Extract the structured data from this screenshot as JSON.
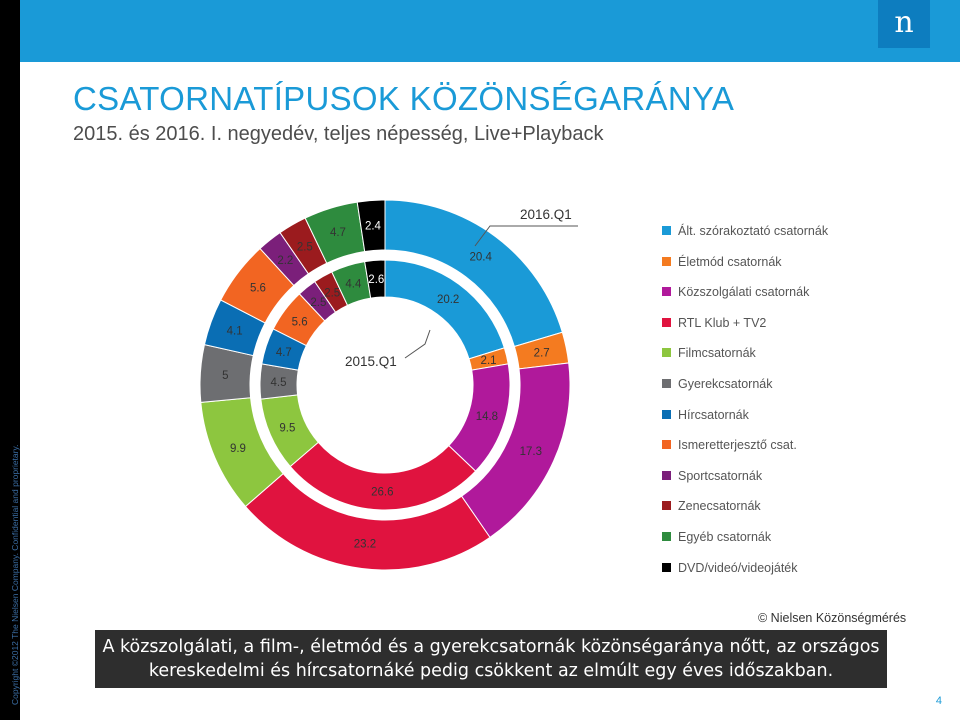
{
  "header": {
    "logo_letter": "n"
  },
  "title": "CSATORNATÍPUSOK KÖZÖNSÉGARÁNYA",
  "subtitle": "2015. és 2016. I. negyedév, teljes népesség, Live+Playback",
  "copyright": "Copyright ©2012 The Nielsen Company. Confidential and proprietary.",
  "source": "© Nielsen Közönségmérés",
  "footer_text": "A közszolgálati, a film-, életmód és a gyerekcsatornák közönségaránya nőtt, az országos kereskedelmi és hírcsatornáké pedig csökkent az elmúlt egy éves időszakban.",
  "page_number": "4",
  "chart_data": {
    "type": "donut",
    "categories": [
      "Ált. szórakoztató csatornák",
      "Életmód csatornák",
      "Közszolgálati csatornák",
      "RTL Klub + TV2",
      "Filmcsatornák",
      "Gyerekcsatornák",
      "Hírcsatornák",
      "Ismeretterjesztő csat.",
      "Sportcsatornák",
      "Zenecsatornák",
      "Egyéb csatornák",
      "DVD/videó/videojáték"
    ],
    "colors": [
      "#1a9ad7",
      "#f47b20",
      "#b0199b",
      "#e0133f",
      "#8dc63f",
      "#6d6e71",
      "#0a6eb4",
      "#f26522",
      "#7b1f7a",
      "#9b1b1e",
      "#2e8b3e",
      "#000000"
    ],
    "series": [
      {
        "name": "2015.Q1",
        "ring": "inner",
        "values": [
          20.2,
          2.1,
          14.8,
          26.6,
          9.5,
          4.5,
          4.7,
          5.6,
          2.5,
          2.5,
          4.4,
          2.6
        ]
      },
      {
        "name": "2016.Q1",
        "ring": "outer",
        "values": [
          20.4,
          2.7,
          17.3,
          23.2,
          9.9,
          5.0,
          4.1,
          5.6,
          2.2,
          2.5,
          4.7,
          2.4
        ]
      }
    ]
  }
}
